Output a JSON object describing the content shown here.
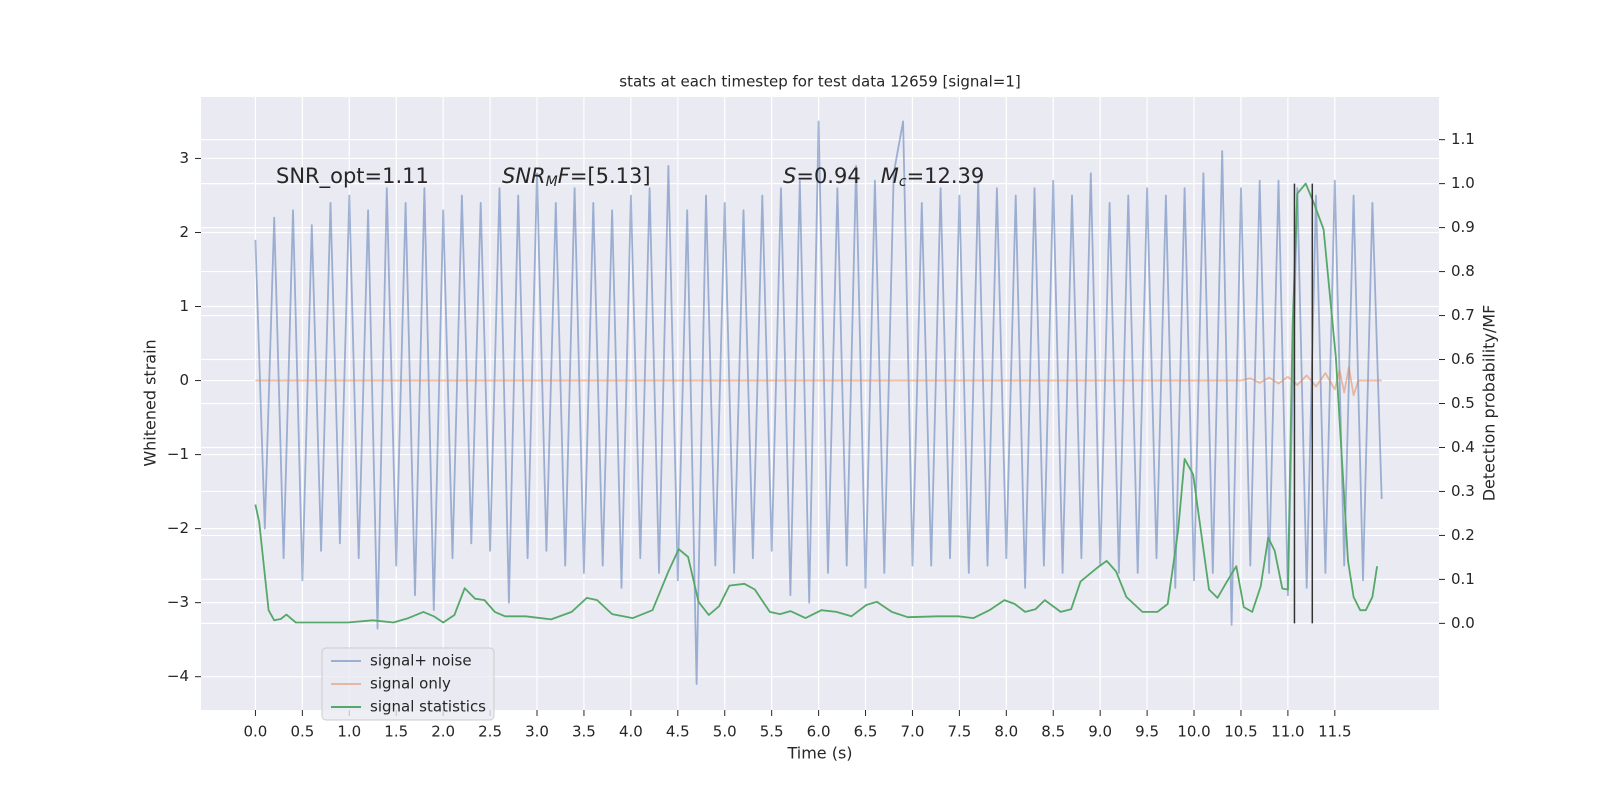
{
  "chart_data": {
    "type": "line",
    "title": "stats at each timestep for test data 12659 [signal=1]",
    "xlabel": "Time (s)",
    "ylabel": "Whitened strain",
    "y2label": "Detection probability/MF",
    "xlim": [
      -0.58,
      12.61
    ],
    "ylim": [
      -4.45,
      3.83
    ],
    "y2lim": [
      -0.197,
      1.197
    ],
    "xticks": [
      {
        "value": 0,
        "label": "0.0"
      },
      {
        "value": 0.5,
        "label": "0.5"
      },
      {
        "value": 1,
        "label": "1.0"
      },
      {
        "value": 1.5,
        "label": "1.5"
      },
      {
        "value": 2,
        "label": "2.0"
      },
      {
        "value": 2.5,
        "label": "2.5"
      },
      {
        "value": 3,
        "label": "3.0"
      },
      {
        "value": 3.5,
        "label": "3.5"
      },
      {
        "value": 4,
        "label": "4.0"
      },
      {
        "value": 4.5,
        "label": "4.5"
      },
      {
        "value": 5,
        "label": "5.0"
      },
      {
        "value": 5.5,
        "label": "5.5"
      },
      {
        "value": 6,
        "label": "6.0"
      },
      {
        "value": 6.5,
        "label": "6.5"
      },
      {
        "value": 7,
        "label": "7.0"
      },
      {
        "value": 7.5,
        "label": "7.5"
      },
      {
        "value": 8,
        "label": "8.0"
      },
      {
        "value": 8.5,
        "label": "8.5"
      },
      {
        "value": 9,
        "label": "9.0"
      },
      {
        "value": 9.5,
        "label": "9.5"
      },
      {
        "value": 10,
        "label": "10.0"
      },
      {
        "value": 10.5,
        "label": "10.5"
      },
      {
        "value": 11,
        "label": "11.0"
      },
      {
        "value": 11.5,
        "label": "11.5"
      }
    ],
    "yticks": [
      {
        "value": -4,
        "label": "−4"
      },
      {
        "value": -3,
        "label": "−3"
      },
      {
        "value": -2,
        "label": "−2"
      },
      {
        "value": -1,
        "label": "−1"
      },
      0,
      1,
      2,
      3
    ],
    "y2ticks": [
      {
        "value": 0,
        "label": "0.0"
      },
      {
        "value": 0.1,
        "label": "0.1"
      },
      {
        "value": 0.2,
        "label": "0.2"
      },
      {
        "value": 0.3,
        "label": "0.3"
      },
      {
        "value": 0.4,
        "label": "0.4"
      },
      {
        "value": 0.5,
        "label": "0.5"
      },
      {
        "value": 0.6,
        "label": "0.6"
      },
      {
        "value": 0.7,
        "label": "0.7"
      },
      {
        "value": 0.8,
        "label": "0.8"
      },
      {
        "value": 0.9,
        "label": "0.9"
      },
      {
        "value": 1.0,
        "label": "1.0"
      },
      {
        "value": 1.1,
        "label": "1.1"
      }
    ],
    "grid": true,
    "legend": "lower left",
    "series": [
      {
        "name": "signal+ noise",
        "color": "#4c72b0",
        "opacity": 0.5,
        "x": [
          0,
          0.1,
          0.2,
          0.3,
          0.4,
          0.5,
          0.6,
          0.7,
          0.8,
          0.9,
          1,
          1.1,
          1.2,
          1.3,
          1.4,
          1.5,
          1.6,
          1.7,
          1.8,
          1.9,
          2,
          2.1,
          2.2,
          2.3,
          2.4,
          2.5,
          2.6,
          2.7,
          2.8,
          2.9,
          3,
          3.1,
          3.2,
          3.3,
          3.4,
          3.5,
          3.6,
          3.7,
          3.8,
          3.9,
          4,
          4.1,
          4.2,
          4.3,
          4.4,
          4.5,
          4.6,
          4.7,
          4.8,
          4.9,
          5,
          5.1,
          5.2,
          5.3,
          5.4,
          5.5,
          5.6,
          5.7,
          5.8,
          5.9,
          6,
          6.1,
          6.2,
          6.3,
          6.4,
          6.5,
          6.6,
          6.7,
          6.8,
          6.9,
          7,
          7.1,
          7.2,
          7.3,
          7.4,
          7.5,
          7.6,
          7.7,
          7.8,
          7.9,
          8,
          8.1,
          8.2,
          8.3,
          8.4,
          8.5,
          8.6,
          8.7,
          8.8,
          8.9,
          9,
          9.1,
          9.2,
          9.3,
          9.4,
          9.5,
          9.6,
          9.7,
          9.8,
          9.9,
          10,
          10.1,
          10.2,
          10.3,
          10.4,
          10.5,
          10.6,
          10.7,
          10.8,
          10.9,
          11,
          11.1,
          11.2,
          11.3,
          11.4,
          11.5,
          11.6,
          11.7,
          11.8,
          11.9,
          12
        ],
        "values": [
          1.9,
          -2.0,
          2.2,
          -2.4,
          2.3,
          -2.7,
          2.1,
          -2.3,
          2.4,
          -2.2,
          2.5,
          -2.4,
          2.3,
          -3.35,
          2.6,
          -2.5,
          2.4,
          -2.9,
          2.6,
          -3.1,
          2.3,
          -2.4,
          2.5,
          -2.2,
          2.4,
          -2.3,
          2.6,
          -3.0,
          2.5,
          -2.4,
          2.8,
          -2.3,
          2.4,
          -2.5,
          2.6,
          -2.6,
          2.4,
          -2.5,
          2.3,
          -2.8,
          2.5,
          -2.4,
          2.6,
          -2.6,
          2.9,
          -2.7,
          2.3,
          -4.1,
          2.5,
          -2.5,
          2.4,
          -2.6,
          2.3,
          -2.4,
          2.5,
          -2.3,
          2.6,
          -2.9,
          2.7,
          -3.0,
          3.5,
          -2.6,
          2.6,
          -2.5,
          2.9,
          -2.8,
          2.7,
          -2.6,
          2.8,
          3.5,
          -2.5,
          2.4,
          -2.5,
          2.6,
          -2.4,
          2.5,
          -2.6,
          2.7,
          -2.5,
          2.6,
          -2.4,
          2.5,
          -2.8,
          2.6,
          -2.5,
          2.7,
          -2.6,
          2.5,
          -2.4,
          2.8,
          -2.5,
          2.4,
          -2.6,
          2.5,
          -2.6,
          2.6,
          -2.4,
          2.5,
          -2.8,
          2.6,
          -2.7,
          2.8,
          -2.6,
          3.1,
          -3.3,
          2.6,
          -2.5,
          2.7,
          -2.6,
          2.7,
          -2.9,
          2.6,
          -2.8,
          2.5,
          -2.6,
          2.7,
          -2.5,
          2.5,
          -2.7,
          2.4,
          -1.6
        ]
      },
      {
        "name": "signal only",
        "color": "#dd8452",
        "opacity": 0.5,
        "x": [
          0,
          10.5,
          10.6,
          10.7,
          10.8,
          10.9,
          11.0,
          11.1,
          11.2,
          11.3,
          11.4,
          11.5,
          11.55,
          11.6,
          11.65,
          11.7,
          11.75,
          12
        ],
        "values": [
          0,
          0,
          0.03,
          -0.03,
          0.04,
          -0.04,
          0.05,
          -0.06,
          0.07,
          -0.08,
          0.1,
          -0.12,
          0.14,
          -0.16,
          0.18,
          -0.2,
          0,
          0
        ]
      },
      {
        "name": "signal statistics",
        "color": "#55a868",
        "axis": "y2",
        "x": [
          0,
          0.04,
          0.09,
          0.14,
          0.2,
          0.27,
          0.33,
          0.43,
          0.54,
          0.98,
          1.25,
          1.47,
          1.63,
          1.79,
          1.9,
          2.0,
          2.12,
          2.23,
          2.34,
          2.44,
          2.55,
          2.66,
          2.88,
          3.15,
          3.37,
          3.53,
          3.64,
          3.8,
          4.02,
          4.23,
          4.4,
          4.51,
          4.61,
          4.72,
          4.83,
          4.94,
          5.05,
          5.21,
          5.32,
          5.48,
          5.59,
          5.7,
          5.86,
          6.03,
          6.19,
          6.35,
          6.51,
          6.62,
          6.78,
          6.95,
          7.27,
          7.49,
          7.65,
          7.82,
          7.98,
          8.09,
          8.2,
          8.31,
          8.41,
          8.58,
          8.69,
          8.79,
          8.96,
          9.07,
          9.17,
          9.28,
          9.45,
          9.61,
          9.72,
          9.83,
          9.9,
          9.99,
          10.08,
          10.16,
          10.25,
          10.35,
          10.45,
          10.53,
          10.62,
          10.71,
          10.79,
          10.86,
          10.94,
          11.0,
          11.05,
          11.1,
          11.19,
          11.28,
          11.38,
          11.51,
          11.64,
          11.7,
          11.77,
          11.83,
          11.9,
          11.95
        ],
        "values": [
          0.27,
          0.23,
          0.13,
          0.03,
          0.007,
          0.01,
          0.02,
          0.002,
          0.002,
          0.002,
          0.007,
          0.002,
          0.012,
          0.026,
          0.016,
          0.002,
          0.019,
          0.08,
          0.056,
          0.053,
          0.026,
          0.016,
          0.016,
          0.009,
          0.026,
          0.058,
          0.053,
          0.021,
          0.012,
          0.03,
          0.118,
          0.169,
          0.151,
          0.049,
          0.019,
          0.039,
          0.086,
          0.09,
          0.077,
          0.026,
          0.021,
          0.028,
          0.012,
          0.03,
          0.026,
          0.016,
          0.042,
          0.049,
          0.026,
          0.014,
          0.016,
          0.016,
          0.012,
          0.03,
          0.053,
          0.044,
          0.026,
          0.032,
          0.053,
          0.026,
          0.032,
          0.095,
          0.125,
          0.142,
          0.118,
          0.06,
          0.026,
          0.026,
          0.044,
          0.211,
          0.374,
          0.339,
          0.2,
          0.077,
          0.058,
          0.095,
          0.13,
          0.037,
          0.026,
          0.084,
          0.195,
          0.165,
          0.079,
          0.077,
          0.675,
          0.977,
          1.0,
          0.954,
          0.896,
          0.606,
          0.142,
          0.06,
          0.03,
          0.03,
          0.06,
          0.13
        ]
      }
    ],
    "vlines": {
      "x": [
        11.07,
        11.26
      ],
      "ymin": 0,
      "ymax": 1.0,
      "axis": "y2",
      "color": "#333333"
    },
    "annotations": [
      [
        {
          "text": "SNR_opt=1.11"
        }
      ],
      [
        {
          "text": "SNR",
          "style": "italic"
        },
        {
          "text": "M",
          "style": "sub"
        },
        {
          "text": "F",
          "style": "italic"
        },
        {
          "text": "=[5.13]"
        }
      ],
      [
        {
          "text": "S",
          "style": "italic"
        },
        {
          "text": "=0.94   "
        },
        {
          "text": "M",
          "style": "italic"
        },
        {
          "text": "c",
          "style": "sub"
        },
        {
          "text": "=12.39"
        }
      ]
    ]
  }
}
